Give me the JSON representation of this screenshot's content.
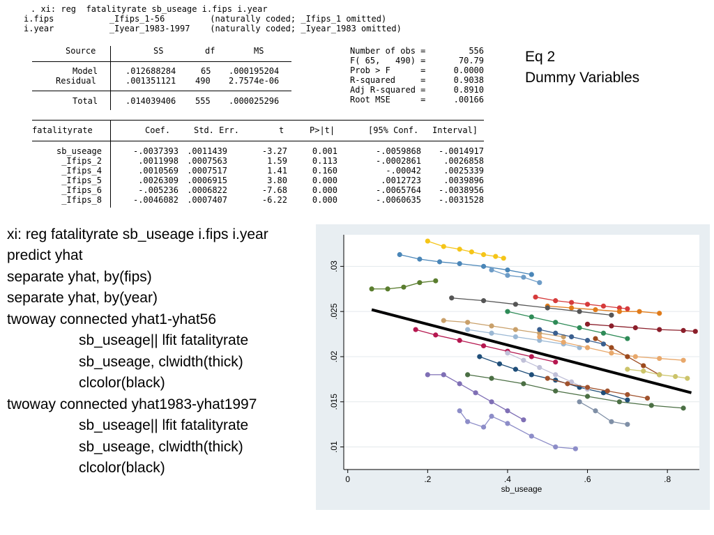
{
  "stata_output": {
    "header_lines": [
      ". xi: reg  fatalityrate sb_useage i.fips i.year",
      "i.fips           _Ifips_1-56         (naturally coded; _Ifips_1 omitted)",
      "i.year           _Iyear_1983-1997    (naturally coded; _Iyear_1983 omitted)"
    ],
    "anova": {
      "headers": [
        "Source",
        "SS",
        "df",
        "MS"
      ],
      "rows": [
        {
          "source": "Model",
          "ss": ".012688284",
          "df": "65",
          "ms": ".000195204"
        },
        {
          "source": "Residual",
          "ss": ".001351121",
          "df": "490",
          "ms": "2.7574e-06"
        },
        {
          "source": "Total",
          "ss": ".014039406",
          "df": "555",
          "ms": ".000025296"
        }
      ]
    },
    "stats": [
      {
        "label": "Number of obs =",
        "value": "556"
      },
      {
        "label": "F( 65,   490) =",
        "value": "70.79"
      },
      {
        "label": "Prob > F      =",
        "value": "0.0000"
      },
      {
        "label": "R-squared     =",
        "value": "0.9038"
      },
      {
        "label": "Adj R-squared =",
        "value": "0.8910"
      },
      {
        "label": "Root MSE      =",
        "value": ".00166"
      }
    ],
    "coef_headers": [
      "fatalityrate",
      "Coef.",
      "Std. Err.",
      "t",
      "P>|t|",
      "[95% Conf.",
      "Interval]"
    ],
    "coef_rows": [
      [
        "sb_useage",
        "-.0037393",
        ".0011439",
        "-3.27",
        "0.001",
        "-.0059868",
        "-.0014917"
      ],
      [
        "_Ifips_2",
        ".0011998",
        ".0007563",
        "1.59",
        "0.113",
        "-.0002861",
        ".0026858"
      ],
      [
        "_Ifips_4",
        ".0010569",
        ".0007517",
        "1.41",
        "0.160",
        "-.00042",
        ".0025339"
      ],
      [
        "_Ifips_5",
        ".0026309",
        ".0006915",
        "3.80",
        "0.000",
        ".0012723",
        ".0039896"
      ],
      [
        "_Ifips_6",
        "-.005236",
        ".0006822",
        "-7.68",
        "0.000",
        "-.0065764",
        "-.0038956"
      ],
      [
        "_Ifips_8",
        "-.0046082",
        ".0007407",
        "-6.22",
        "0.000",
        "-.0060635",
        "-.0031528"
      ]
    ]
  },
  "slide_label": {
    "line1": "Eq 2",
    "line2": "Dummy Variables"
  },
  "commands": [
    "xi: reg  fatalityrate sb_useage i.fips i.year",
    "predict yhat",
    "separate yhat, by(fips)",
    "separate yhat, by(year)",
    "twoway connected yhat1-yhat56",
    "sb_useage|| lfit  fatalityrate",
    "sb_useage, clwidth(thick)",
    "clcolor(black)",
    "twoway connected yhat1983-yhat1997",
    "sb_useage|| lfit  fatalityrate",
    "sb_useage, clwidth(thick)",
    "clcolor(black)"
  ],
  "chart_data": {
    "type": "line",
    "xlabel": "sb_useage",
    "ylabel": "",
    "xlim": [
      -0.01,
      0.88
    ],
    "ylim": [
      0.0075,
      0.0335
    ],
    "xticks": [
      "0",
      ".2",
      ".4",
      ".6",
      ".8"
    ],
    "xtick_values": [
      0,
      0.2,
      0.4,
      0.6,
      0.8
    ],
    "yticks": [
      ".01",
      ".015",
      ".02",
      ".025",
      ".03"
    ],
    "ytick_values": [
      0.01,
      0.015,
      0.02,
      0.025,
      0.03
    ],
    "grid": true,
    "legend": "none",
    "fit_line": {
      "x": [
        0.06,
        0.86
      ],
      "y": [
        0.0252,
        0.016
      ],
      "color": "#000000"
    },
    "series": [
      {
        "color": "#d63b3b",
        "x": [
          0.47,
          0.52,
          0.56,
          0.6,
          0.64,
          0.68,
          0.7
        ],
        "y": [
          0.0266,
          0.0262,
          0.026,
          0.0258,
          0.0256,
          0.0254,
          0.0253
        ]
      },
      {
        "color": "#f5c518",
        "x": [
          0.2,
          0.24,
          0.28,
          0.31,
          0.34,
          0.37,
          0.39
        ],
        "y": [
          0.0328,
          0.0322,
          0.0319,
          0.0316,
          0.0313,
          0.0311,
          0.0309
        ]
      },
      {
        "color": "#4a86b8",
        "x": [
          0.13,
          0.18,
          0.23,
          0.28,
          0.34,
          0.4,
          0.46
        ],
        "y": [
          0.0313,
          0.0308,
          0.0305,
          0.0303,
          0.03,
          0.0296,
          0.0291
        ]
      },
      {
        "color": "#e07b1a",
        "x": [
          0.5,
          0.56,
          0.62,
          0.68,
          0.73,
          0.78
        ],
        "y": [
          0.0256,
          0.0254,
          0.0252,
          0.025,
          0.025,
          0.0248
        ]
      },
      {
        "color": "#5a7d2e",
        "x": [
          0.06,
          0.1,
          0.14,
          0.18,
          0.22
        ],
        "y": [
          0.0275,
          0.0275,
          0.0277,
          0.0282,
          0.0284
        ]
      },
      {
        "color": "#7f6fb5",
        "x": [
          0.2,
          0.24,
          0.28,
          0.32,
          0.36,
          0.4,
          0.44
        ],
        "y": [
          0.018,
          0.018,
          0.017,
          0.016,
          0.015,
          0.014,
          0.013
        ]
      },
      {
        "color": "#1f4e79",
        "x": [
          0.33,
          0.38,
          0.42,
          0.46,
          0.52,
          0.58,
          0.64,
          0.7
        ],
        "y": [
          0.02,
          0.0192,
          0.0186,
          0.018,
          0.0174,
          0.0166,
          0.016,
          0.0152
        ]
      },
      {
        "color": "#8b1e2a",
        "x": [
          0.6,
          0.66,
          0.72,
          0.78,
          0.84,
          0.87
        ],
        "y": [
          0.0236,
          0.0234,
          0.0232,
          0.023,
          0.0229,
          0.0228
        ]
      },
      {
        "color": "#9bb8d4",
        "x": [
          0.3,
          0.36,
          0.42,
          0.48,
          0.54,
          0.58
        ],
        "y": [
          0.023,
          0.0226,
          0.0222,
          0.0218,
          0.0214,
          0.021
        ]
      },
      {
        "color": "#2e8b57",
        "x": [
          0.4,
          0.46,
          0.52,
          0.58,
          0.64,
          0.7
        ],
        "y": [
          0.025,
          0.0244,
          0.0238,
          0.0232,
          0.0226,
          0.022
        ]
      },
      {
        "color": "#c9a06a",
        "x": [
          0.24,
          0.3,
          0.36,
          0.42,
          0.48,
          0.54
        ],
        "y": [
          0.024,
          0.0238,
          0.0234,
          0.023,
          0.0226,
          0.0222
        ]
      },
      {
        "color": "#b5174f",
        "x": [
          0.17,
          0.22,
          0.28,
          0.34,
          0.4,
          0.46,
          0.52
        ],
        "y": [
          0.023,
          0.0224,
          0.0218,
          0.0212,
          0.0206,
          0.02,
          0.0194
        ]
      },
      {
        "color": "#7f8fa6",
        "x": [
          0.58,
          0.62,
          0.66,
          0.7
        ],
        "y": [
          0.015,
          0.014,
          0.0128,
          0.0125
        ]
      },
      {
        "color": "#8d8dc8",
        "x": [
          0.28,
          0.3,
          0.34,
          0.36,
          0.4,
          0.46,
          0.52,
          0.57
        ],
        "y": [
          0.014,
          0.0128,
          0.0122,
          0.0134,
          0.0126,
          0.0112,
          0.01,
          0.0098
        ]
      },
      {
        "color": "#4b6f44",
        "x": [
          0.3,
          0.36,
          0.44,
          0.52,
          0.6,
          0.68,
          0.76,
          0.84
        ],
        "y": [
          0.018,
          0.0176,
          0.017,
          0.0162,
          0.0156,
          0.015,
          0.0146,
          0.0143
        ]
      },
      {
        "color": "#e8a86b",
        "x": [
          0.48,
          0.54,
          0.6,
          0.66,
          0.72,
          0.78,
          0.84
        ],
        "y": [
          0.0222,
          0.0216,
          0.021,
          0.0204,
          0.02,
          0.0198,
          0.0196
        ]
      },
      {
        "color": "#6d9cc7",
        "x": [
          0.36,
          0.4,
          0.44,
          0.48
        ],
        "y": [
          0.0296,
          0.029,
          0.0288,
          0.0282
        ]
      },
      {
        "color": "#9c4a1e",
        "x": [
          0.62,
          0.66,
          0.7,
          0.74,
          0.78
        ],
        "y": [
          0.022,
          0.021,
          0.02,
          0.019,
          0.018
        ]
      },
      {
        "color": "#ccc46a",
        "x": [
          0.7,
          0.74,
          0.78,
          0.82,
          0.85
        ],
        "y": [
          0.0186,
          0.0184,
          0.018,
          0.0178,
          0.0176
        ]
      },
      {
        "color": "#3a5f8f",
        "x": [
          0.48,
          0.52,
          0.56,
          0.6,
          0.64
        ],
        "y": [
          0.023,
          0.0226,
          0.0222,
          0.0218,
          0.0214
        ]
      },
      {
        "color": "#555555",
        "x": [
          0.26,
          0.34,
          0.42,
          0.5,
          0.58,
          0.66
        ],
        "y": [
          0.0265,
          0.0262,
          0.0258,
          0.0254,
          0.025,
          0.0246
        ]
      },
      {
        "color": "#c0c0d8",
        "x": [
          0.4,
          0.44,
          0.48,
          0.52,
          0.56,
          0.6
        ],
        "y": [
          0.0204,
          0.0196,
          0.0188,
          0.018,
          0.0172,
          0.0164
        ]
      },
      {
        "color": "#a0522d",
        "x": [
          0.5,
          0.55,
          0.6,
          0.65,
          0.7,
          0.75
        ],
        "y": [
          0.0176,
          0.017,
          0.0166,
          0.0162,
          0.0158,
          0.0154
        ]
      }
    ]
  }
}
